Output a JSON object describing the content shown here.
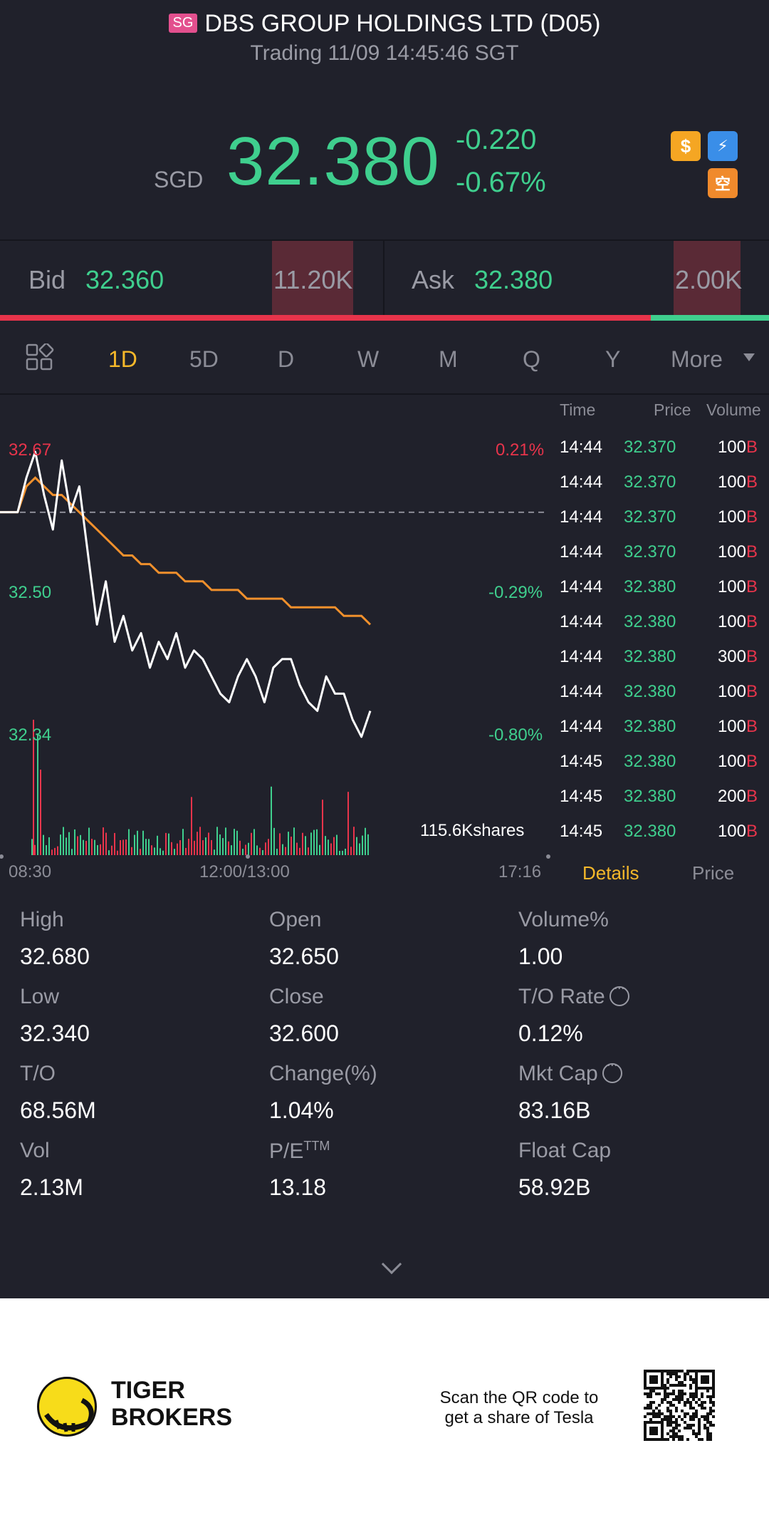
{
  "header": {
    "market_badge": "SG",
    "title": "DBS GROUP HOLDINGS LTD (D05)",
    "status": "Trading 11/09 14:45:46 SGT"
  },
  "quote": {
    "currency": "SGD",
    "last_price": "32.380",
    "change": "-0.220",
    "change_pct": "-0.67%",
    "icons": [
      "dollar-icon",
      "flash-icon",
      "short-sell-icon"
    ],
    "up_color": "#e8344b",
    "down_color": "#3fcf8e"
  },
  "bidask": {
    "bid_label": "Bid",
    "bid_price": "32.360",
    "bid_qty": "11.20K",
    "ask_label": "Ask",
    "ask_price": "32.380",
    "ask_qty": "2.00K",
    "bid_ratio": 0.846
  },
  "tabs": {
    "items": [
      "1D",
      "5D",
      "D",
      "W",
      "M",
      "Q",
      "Y",
      "More"
    ],
    "active": "1D"
  },
  "chart": {
    "y_top": "32.67",
    "y_mid": "32.50",
    "y_bottom": "32.34",
    "pct_top": "0.21%",
    "pct_mid": "-0.29%",
    "pct_bottom": "-0.80%",
    "volume_label": "115.6Kshares",
    "time_start": "08:30",
    "time_mid": "12:00/13:00",
    "time_end": "17:16"
  },
  "chart_data": {
    "type": "line",
    "ylim": [
      32.34,
      32.67
    ],
    "prev_close": 32.6,
    "series": [
      {
        "values": [
          32.6,
          32.6,
          32.6,
          32.64,
          32.67,
          32.62,
          32.58,
          32.66,
          32.6,
          32.63,
          32.55,
          32.47,
          32.52,
          32.45,
          32.48,
          32.44,
          32.46,
          32.42,
          32.45,
          32.43,
          32.46,
          32.42,
          32.44,
          32.43,
          32.41,
          32.39,
          32.38,
          32.41,
          32.43,
          32.41,
          32.38,
          32.42,
          32.43,
          32.43,
          32.4,
          32.38,
          32.37,
          32.41,
          32.39,
          32.39,
          32.36,
          32.34,
          32.37
        ]
      },
      {
        "values": [
          32.6,
          32.6,
          32.6,
          32.63,
          32.64,
          32.63,
          32.62,
          32.62,
          32.61,
          32.6,
          32.59,
          32.58,
          32.57,
          32.56,
          32.55,
          32.55,
          32.54,
          32.54,
          32.53,
          32.53,
          32.53,
          32.52,
          32.52,
          32.52,
          32.51,
          32.51,
          32.51,
          32.51,
          32.5,
          32.5,
          32.5,
          32.5,
          32.5,
          32.49,
          32.49,
          32.49,
          32.49,
          32.49,
          32.49,
          32.48,
          32.48,
          32.48,
          32.47
        ]
      }
    ]
  },
  "trades": {
    "headers": {
      "time": "Time",
      "price": "Price",
      "volume": "Volume"
    },
    "rows": [
      {
        "time": "14:44",
        "price": "32.370",
        "volume": "100",
        "side": "B"
      },
      {
        "time": "14:44",
        "price": "32.370",
        "volume": "100",
        "side": "B"
      },
      {
        "time": "14:44",
        "price": "32.370",
        "volume": "100",
        "side": "B"
      },
      {
        "time": "14:44",
        "price": "32.370",
        "volume": "100",
        "side": "B"
      },
      {
        "time": "14:44",
        "price": "32.380",
        "volume": "100",
        "side": "B"
      },
      {
        "time": "14:44",
        "price": "32.380",
        "volume": "100",
        "side": "B"
      },
      {
        "time": "14:44",
        "price": "32.380",
        "volume": "300",
        "side": "B"
      },
      {
        "time": "14:44",
        "price": "32.380",
        "volume": "100",
        "side": "B"
      },
      {
        "time": "14:44",
        "price": "32.380",
        "volume": "100",
        "side": "B"
      },
      {
        "time": "14:45",
        "price": "32.380",
        "volume": "100",
        "side": "B"
      },
      {
        "time": "14:45",
        "price": "32.380",
        "volume": "200",
        "side": "B"
      },
      {
        "time": "14:45",
        "price": "32.380",
        "volume": "100",
        "side": "B"
      }
    ],
    "tab_details": "Details",
    "tab_price": "Price"
  },
  "stats": [
    {
      "label": "High",
      "value": "32.680"
    },
    {
      "label": "Open",
      "value": "32.650"
    },
    {
      "label": "Volume%",
      "value": "1.00"
    },
    {
      "label": "Low",
      "value": "32.340"
    },
    {
      "label": "Close",
      "value": "32.600"
    },
    {
      "label": "T/O Rate",
      "value": "0.12%"
    },
    {
      "label": "T/O",
      "value": "68.56M"
    },
    {
      "label": "Change(%)",
      "value": "1.04%"
    },
    {
      "label": "Mkt Cap",
      "value": "83.16B"
    },
    {
      "label": "Vol",
      "value": "2.13M"
    },
    {
      "label": "P/E",
      "value": "13.18",
      "superscript": "TTM"
    },
    {
      "label": "Float Cap",
      "value": "58.92B"
    }
  ],
  "footer": {
    "brand_line1": "TIGER",
    "brand_line2": "BROKERS",
    "scan_line1": "Scan the QR code to",
    "scan_line2": "get a share of Tesla"
  }
}
